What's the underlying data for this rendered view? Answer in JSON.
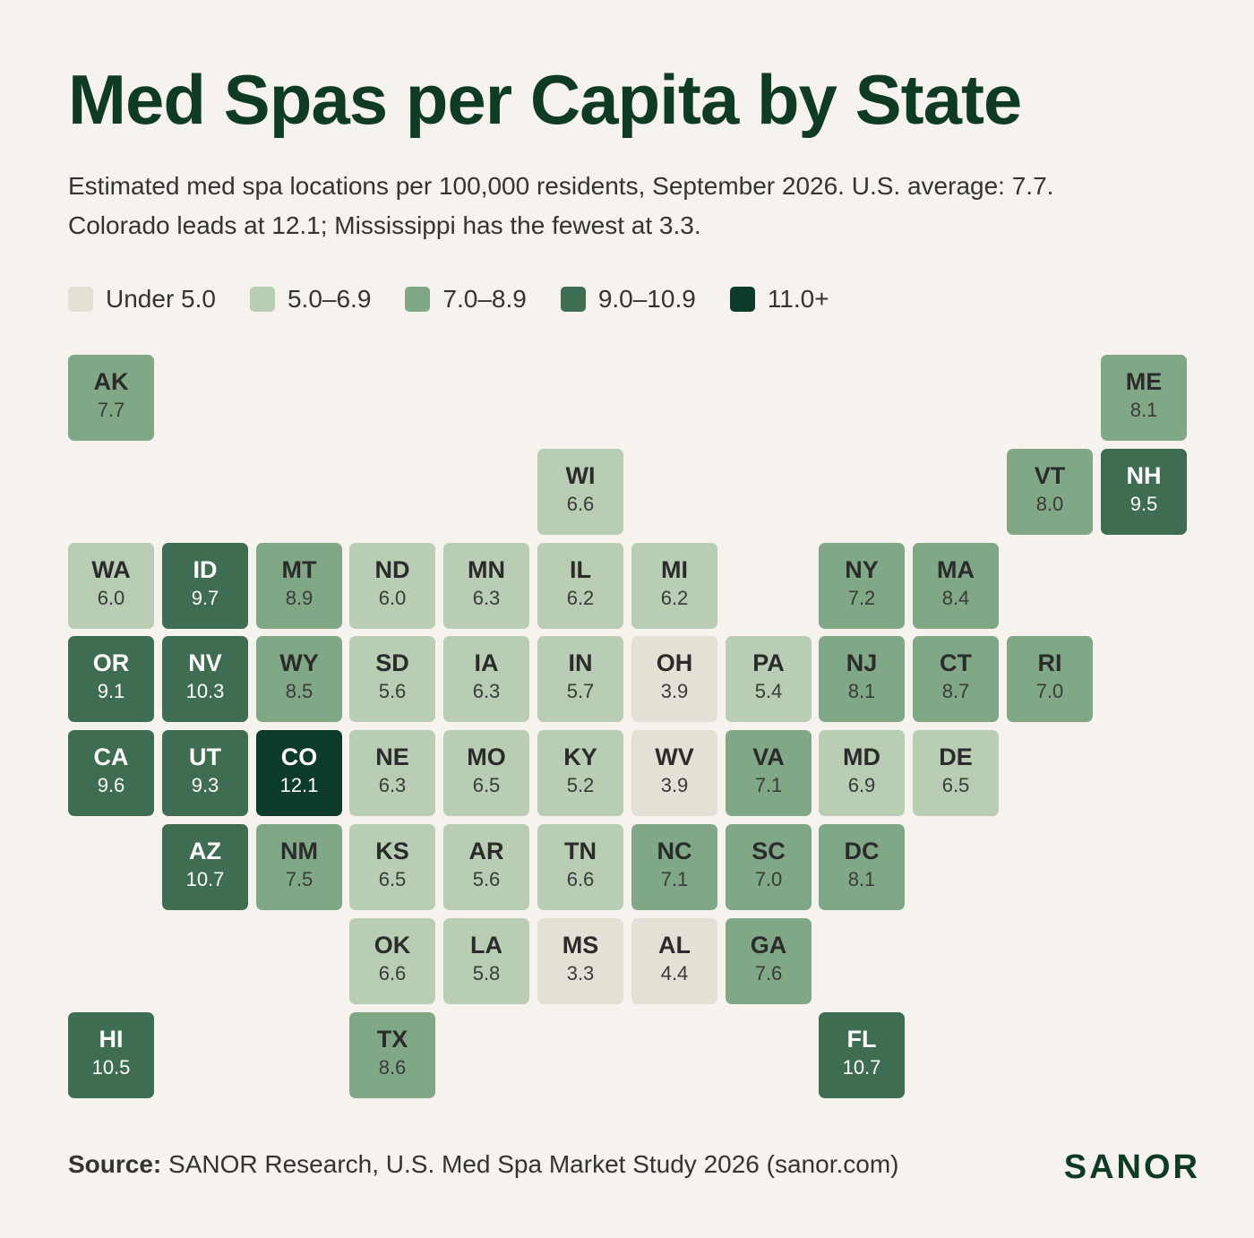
{
  "title": "Med Spas per Capita by State",
  "subtitle": "Estimated med spa locations per 100,000 residents, September 2026. U.S. average: 7.7. Colorado leads at 12.1; Mississippi has the fewest at 3.3.",
  "legend": [
    {
      "label": "Under 5.0",
      "color": "#e4e0d6"
    },
    {
      "label": "5.0–6.9",
      "color": "#b8cdb4"
    },
    {
      "label": "7.0–8.9",
      "color": "#80a887"
    },
    {
      "label": "9.0–10.9",
      "color": "#3f6d51"
    },
    {
      "label": "11.0+",
      "color": "#0c3b2b"
    }
  ],
  "source_label": "Source:",
  "source_text": "SANOR Research, U.S. Med Spa Market Study 2026 (sanor.com)",
  "brand": "SANOR",
  "chart_data": {
    "type": "heatmap",
    "metric": "Med spa locations per 100,000 residents",
    "bins": [
      {
        "label": "Under 5.0",
        "min": null,
        "max": 5.0,
        "color": "#e4e0d6",
        "text": "dark"
      },
      {
        "label": "5.0–6.9",
        "min": 5.0,
        "max": 7.0,
        "color": "#b8cdb4",
        "text": "dark"
      },
      {
        "label": "7.0–8.9",
        "min": 7.0,
        "max": 9.0,
        "color": "#80a887",
        "text": "dark"
      },
      {
        "label": "9.0–10.9",
        "min": 9.0,
        "max": 11.0,
        "color": "#3f6d51",
        "text": "light"
      },
      {
        "label": "11.0+",
        "min": 11.0,
        "max": null,
        "color": "#0c3b2b",
        "text": "light"
      }
    ],
    "states": [
      {
        "abbr": "AK",
        "value": "7.7",
        "row": 0,
        "col": 0
      },
      {
        "abbr": "ME",
        "value": "8.1",
        "row": 0,
        "col": 11
      },
      {
        "abbr": "WI",
        "value": "6.6",
        "row": 1,
        "col": 5
      },
      {
        "abbr": "VT",
        "value": "8.0",
        "row": 1,
        "col": 10
      },
      {
        "abbr": "NH",
        "value": "9.5",
        "row": 1,
        "col": 11
      },
      {
        "abbr": "WA",
        "value": "6.0",
        "row": 2,
        "col": 0
      },
      {
        "abbr": "ID",
        "value": "9.7",
        "row": 2,
        "col": 1
      },
      {
        "abbr": "MT",
        "value": "8.9",
        "row": 2,
        "col": 2
      },
      {
        "abbr": "ND",
        "value": "6.0",
        "row": 2,
        "col": 3
      },
      {
        "abbr": "MN",
        "value": "6.3",
        "row": 2,
        "col": 4
      },
      {
        "abbr": "IL",
        "value": "6.2",
        "row": 2,
        "col": 5
      },
      {
        "abbr": "MI",
        "value": "6.2",
        "row": 2,
        "col": 6
      },
      {
        "abbr": "NY",
        "value": "7.2",
        "row": 2,
        "col": 8
      },
      {
        "abbr": "MA",
        "value": "8.4",
        "row": 2,
        "col": 9
      },
      {
        "abbr": "OR",
        "value": "9.1",
        "row": 3,
        "col": 0
      },
      {
        "abbr": "NV",
        "value": "10.3",
        "row": 3,
        "col": 1
      },
      {
        "abbr": "WY",
        "value": "8.5",
        "row": 3,
        "col": 2
      },
      {
        "abbr": "SD",
        "value": "5.6",
        "row": 3,
        "col": 3
      },
      {
        "abbr": "IA",
        "value": "6.3",
        "row": 3,
        "col": 4
      },
      {
        "abbr": "IN",
        "value": "5.7",
        "row": 3,
        "col": 5
      },
      {
        "abbr": "OH",
        "value": "3.9",
        "row": 3,
        "col": 6
      },
      {
        "abbr": "PA",
        "value": "5.4",
        "row": 3,
        "col": 7
      },
      {
        "abbr": "NJ",
        "value": "8.1",
        "row": 3,
        "col": 8
      },
      {
        "abbr": "CT",
        "value": "8.7",
        "row": 3,
        "col": 9
      },
      {
        "abbr": "RI",
        "value": "7.0",
        "row": 3,
        "col": 10
      },
      {
        "abbr": "CA",
        "value": "9.6",
        "row": 4,
        "col": 0
      },
      {
        "abbr": "UT",
        "value": "9.3",
        "row": 4,
        "col": 1
      },
      {
        "abbr": "CO",
        "value": "12.1",
        "row": 4,
        "col": 2
      },
      {
        "abbr": "NE",
        "value": "6.3",
        "row": 4,
        "col": 3
      },
      {
        "abbr": "MO",
        "value": "6.5",
        "row": 4,
        "col": 4
      },
      {
        "abbr": "KY",
        "value": "5.2",
        "row": 4,
        "col": 5
      },
      {
        "abbr": "WV",
        "value": "3.9",
        "row": 4,
        "col": 6
      },
      {
        "abbr": "VA",
        "value": "7.1",
        "row": 4,
        "col": 7
      },
      {
        "abbr": "MD",
        "value": "6.9",
        "row": 4,
        "col": 8
      },
      {
        "abbr": "DE",
        "value": "6.5",
        "row": 4,
        "col": 9
      },
      {
        "abbr": "AZ",
        "value": "10.7",
        "row": 5,
        "col": 1
      },
      {
        "abbr": "NM",
        "value": "7.5",
        "row": 5,
        "col": 2
      },
      {
        "abbr": "KS",
        "value": "6.5",
        "row": 5,
        "col": 3
      },
      {
        "abbr": "AR",
        "value": "5.6",
        "row": 5,
        "col": 4
      },
      {
        "abbr": "TN",
        "value": "6.6",
        "row": 5,
        "col": 5
      },
      {
        "abbr": "NC",
        "value": "7.1",
        "row": 5,
        "col": 6
      },
      {
        "abbr": "SC",
        "value": "7.0",
        "row": 5,
        "col": 7
      },
      {
        "abbr": "DC",
        "value": "8.1",
        "row": 5,
        "col": 8
      },
      {
        "abbr": "OK",
        "value": "6.6",
        "row": 6,
        "col": 3
      },
      {
        "abbr": "LA",
        "value": "5.8",
        "row": 6,
        "col": 4
      },
      {
        "abbr": "MS",
        "value": "3.3",
        "row": 6,
        "col": 5
      },
      {
        "abbr": "AL",
        "value": "4.4",
        "row": 6,
        "col": 6
      },
      {
        "abbr": "GA",
        "value": "7.6",
        "row": 6,
        "col": 7
      },
      {
        "abbr": "HI",
        "value": "10.5",
        "row": 7,
        "col": 0
      },
      {
        "abbr": "TX",
        "value": "8.6",
        "row": 7,
        "col": 3
      },
      {
        "abbr": "FL",
        "value": "10.7",
        "row": 7,
        "col": 8
      }
    ]
  }
}
